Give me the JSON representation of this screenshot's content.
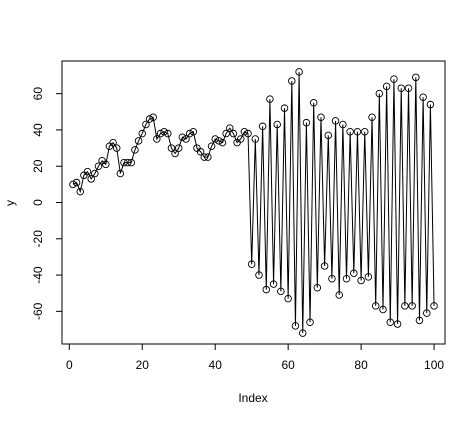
{
  "chart_data": {
    "type": "line",
    "title": "",
    "xlabel": "Index",
    "ylabel": "y",
    "xlim": [
      -2,
      103
    ],
    "ylim": [
      -78,
      78
    ],
    "xticks": [
      0,
      20,
      40,
      60,
      80,
      100
    ],
    "yticks": [
      -60,
      -40,
      -20,
      0,
      20,
      40,
      60
    ],
    "grid": false,
    "legend": "none",
    "series": [
      {
        "marker": "open-circle",
        "x": [
          1,
          2,
          3,
          4,
          5,
          6,
          7,
          8,
          9,
          10,
          11,
          12,
          13,
          14,
          15,
          16,
          17,
          18,
          19,
          20,
          21,
          22,
          23,
          24,
          25,
          26,
          27,
          28,
          29,
          30,
          31,
          32,
          33,
          34,
          35,
          36,
          37,
          38,
          39,
          40,
          41,
          42,
          43,
          44,
          45,
          46,
          47,
          48,
          49,
          50,
          51,
          52,
          53,
          54,
          55,
          56,
          57,
          58,
          59,
          60,
          61,
          62,
          63,
          64,
          65,
          66,
          67,
          68,
          69,
          70,
          71,
          72,
          73,
          74,
          75,
          76,
          77,
          78,
          79,
          80,
          81,
          82,
          83,
          84,
          85,
          86,
          87,
          88,
          89,
          90,
          91,
          92,
          93,
          94,
          95,
          96,
          97,
          98,
          99,
          100
        ],
        "y": [
          10,
          11,
          6,
          15,
          17,
          13,
          16,
          20,
          23,
          21,
          31,
          33,
          30,
          16,
          22,
          22,
          22,
          29,
          34,
          38,
          43,
          46,
          47,
          35,
          38,
          39,
          38,
          30,
          27,
          30,
          36,
          35,
          38,
          39,
          30,
          28,
          25,
          25,
          31,
          35,
          34,
          33,
          38,
          41,
          38,
          33,
          35,
          39,
          38,
          -34,
          35,
          -40,
          42,
          -48,
          57,
          -45,
          43,
          -49,
          52,
          -53,
          67,
          -68,
          72,
          -72,
          44,
          -66,
          55,
          -47,
          47,
          -35,
          37,
          -42,
          45,
          -51,
          43,
          -42,
          39,
          -39,
          39,
          -43,
          39,
          -41,
          47,
          -57,
          60,
          -59,
          64,
          -66,
          68,
          -67,
          63,
          -57,
          63,
          -57,
          69,
          -65,
          58,
          -61,
          54,
          -57
        ]
      }
    ]
  }
}
